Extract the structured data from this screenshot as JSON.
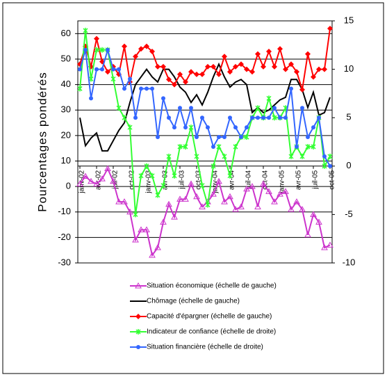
{
  "chart_data": {
    "type": "line",
    "y_label": "Pourcentages pondérés",
    "categories": [
      "janv-02",
      null,
      null,
      "avr-02",
      null,
      null,
      "juil-02",
      null,
      null,
      "oct-02",
      null,
      null,
      "janv-03",
      null,
      null,
      "avr-03",
      null,
      null,
      "juil-03",
      null,
      null,
      "oct-03",
      null,
      null,
      "janv-04",
      null,
      null,
      "avr-04",
      null,
      null,
      "juil-04",
      null,
      null,
      "oct-04",
      null,
      null,
      "janv-05",
      null,
      null,
      "avr-05",
      null,
      null,
      "juil-05",
      null,
      null,
      "oct-05"
    ],
    "ylim": [
      -30,
      65
    ],
    "yticks": [
      -30,
      -20,
      -10,
      0,
      10,
      20,
      30,
      40,
      50,
      60
    ],
    "y2lim": [
      -10,
      15
    ],
    "y2ticks": [
      -10,
      -5,
      0,
      5,
      10,
      15
    ],
    "grid": true,
    "legend": "bottom",
    "series": [
      {
        "name": "Situation économique (échelle de gauche)",
        "color": "#cc33cc",
        "marker": "triangle",
        "axis": "y",
        "values": [
          1,
          4,
          2,
          1,
          3,
          7,
          2,
          -6,
          -6,
          -10,
          -21,
          -17,
          -17,
          -27,
          -24,
          -14,
          -7,
          -12,
          -5,
          -5,
          1,
          -4,
          -8,
          -6,
          -3,
          2,
          -6,
          -4,
          -9,
          -8,
          -1,
          0,
          -8,
          1,
          -2,
          -6,
          -3,
          -2,
          -9,
          -6,
          -9,
          -19,
          -11,
          -14,
          -24,
          -23
        ]
      },
      {
        "name": "Chômage (échelle de gauche)",
        "color": "#000000",
        "marker": "none",
        "axis": "y",
        "values": [
          27,
          16,
          19,
          21,
          14,
          14,
          18,
          22,
          25,
          33,
          40,
          43,
          46,
          43,
          41,
          46,
          46,
          43,
          39,
          37,
          33,
          36,
          32,
          37,
          43,
          48,
          43,
          39,
          41,
          42,
          40,
          29,
          31,
          29,
          30,
          32,
          34,
          35,
          42,
          42,
          38,
          31,
          37,
          28,
          29,
          35
        ]
      },
      {
        "name": "Capacité d'épargner (échelle de gauche)",
        "color": "#ff0000",
        "marker": "diamond",
        "axis": "y",
        "values": [
          48,
          55,
          47,
          58,
          49,
          45,
          47,
          44,
          55,
          41,
          51,
          54,
          55,
          53,
          47,
          47,
          42,
          40,
          44,
          41,
          45,
          44,
          44,
          47,
          47,
          44,
          51,
          45,
          47,
          48,
          46,
          45,
          52,
          47,
          53,
          47,
          54,
          46,
          48,
          45,
          38,
          52,
          43,
          46,
          46,
          62
        ]
      },
      {
        "name": "Indicateur de confiance (échelle de droite)",
        "color": "#33ff33",
        "marker": "star",
        "axis": "y2",
        "values": [
          8,
          14,
          9,
          12,
          12,
          12,
          9,
          6,
          5,
          4,
          -5,
          -1,
          0,
          -1,
          -3,
          -2,
          1,
          -1,
          2,
          2,
          4,
          1,
          -2,
          -4,
          0,
          2,
          1,
          -1,
          2,
          3,
          3,
          5,
          6,
          5,
          7,
          5,
          5,
          6,
          1,
          2,
          1,
          2,
          2,
          5,
          0,
          1
        ]
      },
      {
        "name": "Situation financière (échelle de droite)",
        "color": "#3366ff",
        "marker": "circle",
        "axis": "y2",
        "values": [
          10,
          12,
          7,
          10,
          10,
          12,
          10,
          10,
          8,
          9,
          5,
          8,
          8,
          8,
          3,
          7,
          5,
          4,
          6,
          4,
          6,
          3,
          5,
          4,
          2,
          3,
          3,
          5,
          4,
          3,
          4,
          5,
          5,
          5,
          5,
          6,
          5,
          5,
          8,
          2,
          6,
          3,
          4,
          5,
          1,
          0
        ]
      }
    ]
  }
}
